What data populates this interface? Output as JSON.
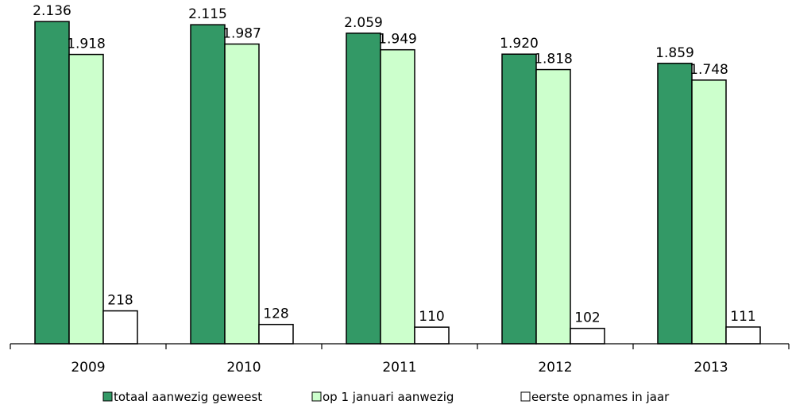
{
  "chart_data": {
    "type": "bar",
    "categories": [
      "2009",
      "2010",
      "2011",
      "2012",
      "2013"
    ],
    "series": [
      {
        "name": "totaal aanwezig geweest",
        "color": "#339966",
        "values": [
          2136,
          2115,
          2059,
          1920,
          1859
        ],
        "labels": [
          "2.136",
          "2.115",
          "2.059",
          "1.920",
          "1.859"
        ]
      },
      {
        "name": "op 1 januari aanwezig",
        "color": "#ccffcc",
        "values": [
          1918,
          1987,
          1949,
          1818,
          1748
        ],
        "labels": [
          "1.918",
          "1.987",
          "1.949",
          "1.818",
          "1.748"
        ]
      },
      {
        "name": "eerste opnames in jaar",
        "color": "#ffffff",
        "values": [
          218,
          128,
          110,
          102,
          111
        ],
        "labels": [
          "218",
          "128",
          "110",
          "102",
          "111"
        ]
      }
    ],
    "ylim": [
      0,
      2200
    ],
    "grid": false,
    "legend_position": "bottom"
  }
}
